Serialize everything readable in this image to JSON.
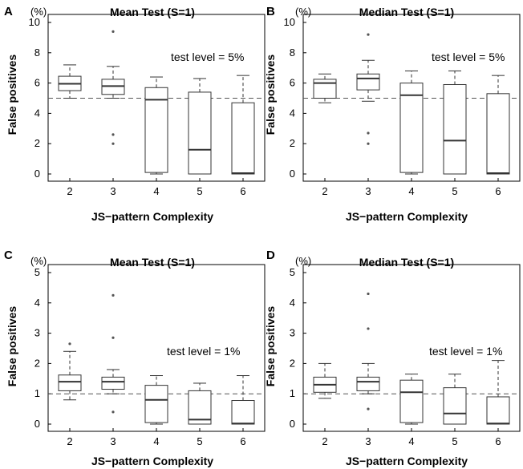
{
  "chart_data": [
    {
      "type": "boxplot",
      "panel": "A",
      "title": "Mean Test (S=1)",
      "xlabel": "JS−pattern Complexity",
      "ylabel": "False positives",
      "yunit": "(%)",
      "ylim": [
        0,
        10
      ],
      "yticks": [
        0,
        2,
        4,
        6,
        8,
        10
      ],
      "reference_line": 5,
      "annotation": "test level = 5%",
      "categories": [
        "2",
        "3",
        "4",
        "5",
        "6"
      ],
      "boxes": [
        {
          "q1": 5.5,
          "median": 5.95,
          "q3": 6.45,
          "whisker_low": 5.0,
          "whisker_high": 7.2,
          "outliers": []
        },
        {
          "q1": 5.25,
          "median": 5.8,
          "q3": 6.25,
          "whisker_low": 5.0,
          "whisker_high": 7.1,
          "outliers": [
            9.4,
            2.6,
            2.0
          ]
        },
        {
          "q1": 0.1,
          "median": 4.9,
          "q3": 5.7,
          "whisker_low": 0.0,
          "whisker_high": 6.4,
          "outliers": []
        },
        {
          "q1": 0.0,
          "median": 1.6,
          "q3": 5.4,
          "whisker_low": 0.0,
          "whisker_high": 6.3,
          "outliers": []
        },
        {
          "q1": 0.0,
          "median": 0.05,
          "q3": 4.7,
          "whisker_low": 0.0,
          "whisker_high": 6.5,
          "outliers": []
        }
      ]
    },
    {
      "type": "boxplot",
      "panel": "B",
      "title": "Median Test (S=1)",
      "xlabel": "JS−pattern Complexity",
      "ylabel": "False positives",
      "yunit": "(%)",
      "ylim": [
        0,
        10
      ],
      "yticks": [
        0,
        2,
        4,
        6,
        8,
        10
      ],
      "reference_line": 5,
      "annotation": "test level = 5%",
      "categories": [
        "2",
        "3",
        "4",
        "5",
        "6"
      ],
      "boxes": [
        {
          "q1": 5.0,
          "median": 6.0,
          "q3": 6.25,
          "whisker_low": 4.7,
          "whisker_high": 6.6,
          "outliers": []
        },
        {
          "q1": 5.55,
          "median": 6.3,
          "q3": 6.6,
          "whisker_low": 4.8,
          "whisker_high": 7.5,
          "outliers": [
            9.2,
            2.7,
            2.0
          ]
        },
        {
          "q1": 0.1,
          "median": 5.2,
          "q3": 6.0,
          "whisker_low": 0.0,
          "whisker_high": 6.8,
          "outliers": []
        },
        {
          "q1": 0.0,
          "median": 2.2,
          "q3": 5.9,
          "whisker_low": 0.0,
          "whisker_high": 6.8,
          "outliers": []
        },
        {
          "q1": 0.0,
          "median": 0.05,
          "q3": 5.3,
          "whisker_low": 0.0,
          "whisker_high": 6.5,
          "outliers": []
        }
      ]
    },
    {
      "type": "boxplot",
      "panel": "C",
      "title": "Mean Test (S=1)",
      "xlabel": "JS−pattern Complexity",
      "ylabel": "False positives",
      "yunit": "(%)",
      "ylim": [
        0,
        5
      ],
      "yticks": [
        0,
        1,
        2,
        3,
        4,
        5
      ],
      "reference_line": 1,
      "annotation": "test level = 1%",
      "categories": [
        "2",
        "3",
        "4",
        "5",
        "6"
      ],
      "boxes": [
        {
          "q1": 1.1,
          "median": 1.4,
          "q3": 1.62,
          "whisker_low": 0.8,
          "whisker_high": 2.4,
          "outliers": [
            2.65
          ]
        },
        {
          "q1": 1.15,
          "median": 1.4,
          "q3": 1.55,
          "whisker_low": 1.0,
          "whisker_high": 1.8,
          "outliers": [
            4.25,
            2.85,
            0.4
          ]
        },
        {
          "q1": 0.05,
          "median": 0.8,
          "q3": 1.28,
          "whisker_low": 0.0,
          "whisker_high": 1.6,
          "outliers": []
        },
        {
          "q1": 0.0,
          "median": 0.15,
          "q3": 1.1,
          "whisker_low": 0.0,
          "whisker_high": 1.35,
          "outliers": []
        },
        {
          "q1": 0.0,
          "median": 0.02,
          "q3": 0.78,
          "whisker_low": 0.0,
          "whisker_high": 1.6,
          "outliers": []
        }
      ]
    },
    {
      "type": "boxplot",
      "panel": "D",
      "title": "Median Test (S=1)",
      "xlabel": "JS−pattern Complexity",
      "ylabel": "False positives",
      "yunit": "(%)",
      "ylim": [
        0,
        5
      ],
      "yticks": [
        0,
        1,
        2,
        3,
        4,
        5
      ],
      "reference_line": 1,
      "annotation": "test level = 1%",
      "categories": [
        "2",
        "3",
        "4",
        "5",
        "6"
      ],
      "boxes": [
        {
          "q1": 1.05,
          "median": 1.3,
          "q3": 1.55,
          "whisker_low": 0.85,
          "whisker_high": 2.0,
          "outliers": []
        },
        {
          "q1": 1.1,
          "median": 1.4,
          "q3": 1.55,
          "whisker_low": 1.0,
          "whisker_high": 2.0,
          "outliers": [
            4.3,
            3.15,
            0.5
          ]
        },
        {
          "q1": 0.05,
          "median": 1.05,
          "q3": 1.45,
          "whisker_low": 0.0,
          "whisker_high": 1.65,
          "outliers": []
        },
        {
          "q1": 0.0,
          "median": 0.35,
          "q3": 1.2,
          "whisker_low": 0.0,
          "whisker_high": 1.65,
          "outliers": []
        },
        {
          "q1": 0.0,
          "median": 0.02,
          "q3": 0.9,
          "whisker_low": 0.0,
          "whisker_high": 2.1,
          "outliers": []
        }
      ]
    }
  ]
}
